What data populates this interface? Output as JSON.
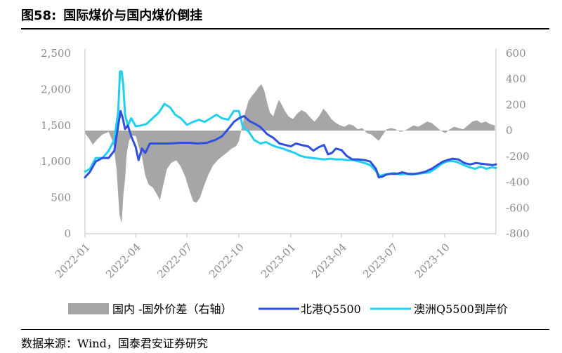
{
  "figure": {
    "number": "图58:",
    "title": "国际煤价与国内煤价倒挂",
    "source": "数据来源：Wind，国泰君安证券研究"
  },
  "chart_data": {
    "type": "line",
    "grid": false,
    "legend_position": "bottom",
    "x_ticks": [
      "2022-01",
      "2022-04",
      "2022-07",
      "2022-10",
      "2023-01",
      "2023-04",
      "2023-07",
      "2023-10"
    ],
    "x_range": [
      "2022-01-01",
      "2023-12-31"
    ],
    "ylim_left": [
      0,
      2500
    ],
    "yticks_left": [
      "0",
      "500",
      "1,000",
      "1,500",
      "2,000",
      "2,500"
    ],
    "ylim_right": [
      -800,
      600
    ],
    "yticks_right": [
      "-800",
      "-600",
      "-400",
      "-200",
      "0",
      "200",
      "400",
      "600"
    ],
    "colors": {
      "spread": "#a6a6a6",
      "north_port": "#2f4fe0",
      "australia": "#1fd0f0",
      "axis": "#bfbfbf"
    },
    "series": [
      {
        "name": "国内 -国外价差（右轴）",
        "type": "area",
        "axis": "right",
        "color": "#a6a6a6",
        "points": [
          [
            "2022-01-01",
            -20
          ],
          [
            "2022-01-08",
            -60
          ],
          [
            "2022-01-15",
            -110
          ],
          [
            "2022-01-22",
            -70
          ],
          [
            "2022-02-01",
            -30
          ],
          [
            "2022-02-12",
            -10
          ],
          [
            "2022-02-20",
            -90
          ],
          [
            "2022-02-26",
            -300
          ],
          [
            "2022-03-03",
            -650
          ],
          [
            "2022-03-07",
            -720
          ],
          [
            "2022-03-10",
            -500
          ],
          [
            "2022-03-13",
            -380
          ],
          [
            "2022-03-16",
            -180
          ],
          [
            "2022-03-20",
            -80
          ],
          [
            "2022-03-25",
            -40
          ],
          [
            "2022-04-01",
            -40
          ],
          [
            "2022-04-06",
            -120
          ],
          [
            "2022-04-12",
            -200
          ],
          [
            "2022-04-18",
            -350
          ],
          [
            "2022-04-24",
            -420
          ],
          [
            "2022-05-01",
            -440
          ],
          [
            "2022-05-08",
            -490
          ],
          [
            "2022-05-14",
            -540
          ],
          [
            "2022-05-20",
            -420
          ],
          [
            "2022-05-26",
            -300
          ],
          [
            "2022-06-03",
            -250
          ],
          [
            "2022-06-12",
            -230
          ],
          [
            "2022-06-20",
            -280
          ],
          [
            "2022-06-28",
            -360
          ],
          [
            "2022-07-05",
            -460
          ],
          [
            "2022-07-12",
            -550
          ],
          [
            "2022-07-18",
            -560
          ],
          [
            "2022-07-24",
            -520
          ],
          [
            "2022-07-31",
            -430
          ],
          [
            "2022-08-08",
            -340
          ],
          [
            "2022-08-16",
            -270
          ],
          [
            "2022-08-24",
            -230
          ],
          [
            "2022-09-01",
            -200
          ],
          [
            "2022-09-10",
            -170
          ],
          [
            "2022-09-18",
            -140
          ],
          [
            "2022-09-26",
            -120
          ],
          [
            "2022-10-01",
            -80
          ],
          [
            "2022-10-06",
            20
          ],
          [
            "2022-10-12",
            140
          ],
          [
            "2022-10-18",
            230
          ],
          [
            "2022-10-24",
            270
          ],
          [
            "2022-10-30",
            300
          ],
          [
            "2022-11-05",
            340
          ],
          [
            "2022-11-10",
            360
          ],
          [
            "2022-11-15",
            310
          ],
          [
            "2022-11-20",
            220
          ],
          [
            "2022-11-25",
            140
          ],
          [
            "2022-12-01",
            110
          ],
          [
            "2022-12-06",
            180
          ],
          [
            "2022-12-11",
            240
          ],
          [
            "2022-12-16",
            200
          ],
          [
            "2022-12-22",
            150
          ],
          [
            "2022-12-28",
            110
          ],
          [
            "2023-01-05",
            90
          ],
          [
            "2023-01-12",
            130
          ],
          [
            "2023-01-20",
            160
          ],
          [
            "2023-01-28",
            140
          ],
          [
            "2023-02-05",
            100
          ],
          [
            "2023-02-12",
            70
          ],
          [
            "2023-02-20",
            110
          ],
          [
            "2023-02-28",
            170
          ],
          [
            "2023-03-06",
            140
          ],
          [
            "2023-03-14",
            90
          ],
          [
            "2023-03-22",
            60
          ],
          [
            "2023-03-30",
            40
          ],
          [
            "2023-04-06",
            30
          ],
          [
            "2023-04-14",
            50
          ],
          [
            "2023-04-22",
            40
          ],
          [
            "2023-04-30",
            10
          ],
          [
            "2023-05-08",
            20
          ],
          [
            "2023-05-16",
            -20
          ],
          [
            "2023-05-24",
            -30
          ],
          [
            "2023-06-01",
            -60
          ],
          [
            "2023-06-06",
            -80
          ],
          [
            "2023-06-12",
            -40
          ],
          [
            "2023-06-20",
            10
          ],
          [
            "2023-06-28",
            20
          ],
          [
            "2023-07-06",
            10
          ],
          [
            "2023-07-14",
            -10
          ],
          [
            "2023-07-22",
            0
          ],
          [
            "2023-07-30",
            20
          ],
          [
            "2023-08-07",
            40
          ],
          [
            "2023-08-15",
            30
          ],
          [
            "2023-08-23",
            50
          ],
          [
            "2023-08-31",
            70
          ],
          [
            "2023-09-08",
            60
          ],
          [
            "2023-09-16",
            30
          ],
          [
            "2023-09-24",
            0
          ],
          [
            "2023-10-02",
            -20
          ],
          [
            "2023-10-10",
            10
          ],
          [
            "2023-10-18",
            30
          ],
          [
            "2023-10-26",
            20
          ],
          [
            "2023-11-03",
            10
          ],
          [
            "2023-11-11",
            40
          ],
          [
            "2023-11-19",
            70
          ],
          [
            "2023-11-27",
            80
          ],
          [
            "2023-12-05",
            60
          ],
          [
            "2023-12-13",
            70
          ],
          [
            "2023-12-21",
            50
          ],
          [
            "2023-12-29",
            40
          ]
        ]
      },
      {
        "name": "北港Q5500",
        "type": "line",
        "axis": "left",
        "color": "#2f4fe0",
        "points": [
          [
            "2022-01-01",
            780
          ],
          [
            "2022-01-10",
            860
          ],
          [
            "2022-01-20",
            1000
          ],
          [
            "2022-02-01",
            1050
          ],
          [
            "2022-02-12",
            1050
          ],
          [
            "2022-02-22",
            1150
          ],
          [
            "2022-03-01",
            1500
          ],
          [
            "2022-03-05",
            1700
          ],
          [
            "2022-03-09",
            1600
          ],
          [
            "2022-03-13",
            1450
          ],
          [
            "2022-03-18",
            1500
          ],
          [
            "2022-03-24",
            1350
          ],
          [
            "2022-04-01",
            1200
          ],
          [
            "2022-04-06",
            1020
          ],
          [
            "2022-04-12",
            1180
          ],
          [
            "2022-04-18",
            1120
          ],
          [
            "2022-04-26",
            1250
          ],
          [
            "2022-05-10",
            1250
          ],
          [
            "2022-06-01",
            1250
          ],
          [
            "2022-06-20",
            1260
          ],
          [
            "2022-07-05",
            1260
          ],
          [
            "2022-07-20",
            1250
          ],
          [
            "2022-08-05",
            1260
          ],
          [
            "2022-08-20",
            1300
          ],
          [
            "2022-09-01",
            1350
          ],
          [
            "2022-09-12",
            1450
          ],
          [
            "2022-09-22",
            1550
          ],
          [
            "2022-10-01",
            1600
          ],
          [
            "2022-10-10",
            1630
          ],
          [
            "2022-10-20",
            1560
          ],
          [
            "2022-10-30",
            1520
          ],
          [
            "2022-11-08",
            1480
          ],
          [
            "2022-11-20",
            1380
          ],
          [
            "2022-12-01",
            1330
          ],
          [
            "2022-12-12",
            1250
          ],
          [
            "2022-12-22",
            1230
          ],
          [
            "2023-01-01",
            1210
          ],
          [
            "2023-01-10",
            1250
          ],
          [
            "2023-01-20",
            1230
          ],
          [
            "2023-02-01",
            1210
          ],
          [
            "2023-02-10",
            1150
          ],
          [
            "2023-02-20",
            1200
          ],
          [
            "2023-03-01",
            1230
          ],
          [
            "2023-03-08",
            1100
          ],
          [
            "2023-03-15",
            1120
          ],
          [
            "2023-03-22",
            1180
          ],
          [
            "2023-04-01",
            1160
          ],
          [
            "2023-04-10",
            1080
          ],
          [
            "2023-04-20",
            1030
          ],
          [
            "2023-05-01",
            1030
          ],
          [
            "2023-05-12",
            1020
          ],
          [
            "2023-05-22",
            1000
          ],
          [
            "2023-06-01",
            900
          ],
          [
            "2023-06-06",
            780
          ],
          [
            "2023-06-12",
            790
          ],
          [
            "2023-06-20",
            820
          ],
          [
            "2023-06-28",
            830
          ],
          [
            "2023-07-08",
            830
          ],
          [
            "2023-07-18",
            850
          ],
          [
            "2023-07-28",
            830
          ],
          [
            "2023-08-08",
            830
          ],
          [
            "2023-08-18",
            840
          ],
          [
            "2023-08-28",
            860
          ],
          [
            "2023-09-08",
            900
          ],
          [
            "2023-09-18",
            950
          ],
          [
            "2023-09-28",
            1000
          ],
          [
            "2023-10-06",
            1020
          ],
          [
            "2023-10-15",
            1040
          ],
          [
            "2023-10-25",
            1030
          ],
          [
            "2023-11-05",
            980
          ],
          [
            "2023-11-15",
            960
          ],
          [
            "2023-11-25",
            980
          ],
          [
            "2023-12-05",
            970
          ],
          [
            "2023-12-15",
            960
          ],
          [
            "2023-12-25",
            950
          ],
          [
            "2023-12-31",
            960
          ]
        ]
      },
      {
        "name": "澳洲Q5500到岸价",
        "type": "line",
        "axis": "left",
        "color": "#1fd0f0",
        "points": [
          [
            "2022-01-01",
            860
          ],
          [
            "2022-01-10",
            900
          ],
          [
            "2022-01-20",
            1050
          ],
          [
            "2022-02-01",
            1050
          ],
          [
            "2022-02-12",
            1150
          ],
          [
            "2022-02-22",
            1300
          ],
          [
            "2022-03-01",
            1700
          ],
          [
            "2022-03-04",
            2250
          ],
          [
            "2022-03-07",
            2250
          ],
          [
            "2022-03-10",
            2050
          ],
          [
            "2022-03-13",
            1650
          ],
          [
            "2022-03-18",
            1500
          ],
          [
            "2022-03-24",
            1600
          ],
          [
            "2022-04-01",
            1490
          ],
          [
            "2022-04-10",
            1500
          ],
          [
            "2022-04-20",
            1520
          ],
          [
            "2022-05-01",
            1600
          ],
          [
            "2022-05-12",
            1680
          ],
          [
            "2022-05-22",
            1800
          ],
          [
            "2022-06-01",
            1750
          ],
          [
            "2022-06-10",
            1650
          ],
          [
            "2022-06-20",
            1600
          ],
          [
            "2022-07-01",
            1510
          ],
          [
            "2022-07-12",
            1550
          ],
          [
            "2022-07-22",
            1580
          ],
          [
            "2022-08-01",
            1550
          ],
          [
            "2022-08-12",
            1600
          ],
          [
            "2022-08-22",
            1650
          ],
          [
            "2022-09-01",
            1600
          ],
          [
            "2022-09-12",
            1580
          ],
          [
            "2022-09-22",
            1700
          ],
          [
            "2022-10-01",
            1700
          ],
          [
            "2022-10-08",
            1480
          ],
          [
            "2022-10-18",
            1420
          ],
          [
            "2022-10-28",
            1300
          ],
          [
            "2022-11-08",
            1250
          ],
          [
            "2022-11-18",
            1270
          ],
          [
            "2022-11-28",
            1230
          ],
          [
            "2022-12-08",
            1200
          ],
          [
            "2022-12-18",
            1180
          ],
          [
            "2022-12-28",
            1150
          ],
          [
            "2023-01-08",
            1120
          ],
          [
            "2023-01-18",
            1080
          ],
          [
            "2023-01-28",
            1060
          ],
          [
            "2023-02-08",
            1050
          ],
          [
            "2023-02-18",
            1040
          ],
          [
            "2023-03-01",
            1030
          ],
          [
            "2023-03-12",
            1040
          ],
          [
            "2023-03-22",
            1030
          ],
          [
            "2023-04-01",
            1030
          ],
          [
            "2023-04-12",
            1020
          ],
          [
            "2023-04-22",
            1020
          ],
          [
            "2023-05-02",
            1000
          ],
          [
            "2023-05-12",
            980
          ],
          [
            "2023-05-22",
            950
          ],
          [
            "2023-06-01",
            870
          ],
          [
            "2023-06-08",
            800
          ],
          [
            "2023-06-16",
            820
          ],
          [
            "2023-06-24",
            830
          ],
          [
            "2023-07-04",
            840
          ],
          [
            "2023-07-14",
            820
          ],
          [
            "2023-07-24",
            830
          ],
          [
            "2023-08-04",
            820
          ],
          [
            "2023-08-14",
            830
          ],
          [
            "2023-08-24",
            840
          ],
          [
            "2023-09-04",
            850
          ],
          [
            "2023-09-14",
            900
          ],
          [
            "2023-09-24",
            960
          ],
          [
            "2023-10-04",
            1000
          ],
          [
            "2023-10-14",
            1010
          ],
          [
            "2023-10-24",
            990
          ],
          [
            "2023-11-04",
            950
          ],
          [
            "2023-11-14",
            920
          ],
          [
            "2023-11-24",
            900
          ],
          [
            "2023-12-04",
            930
          ],
          [
            "2023-12-14",
            900
          ],
          [
            "2023-12-24",
            920
          ],
          [
            "2023-12-31",
            910
          ]
        ]
      }
    ]
  }
}
